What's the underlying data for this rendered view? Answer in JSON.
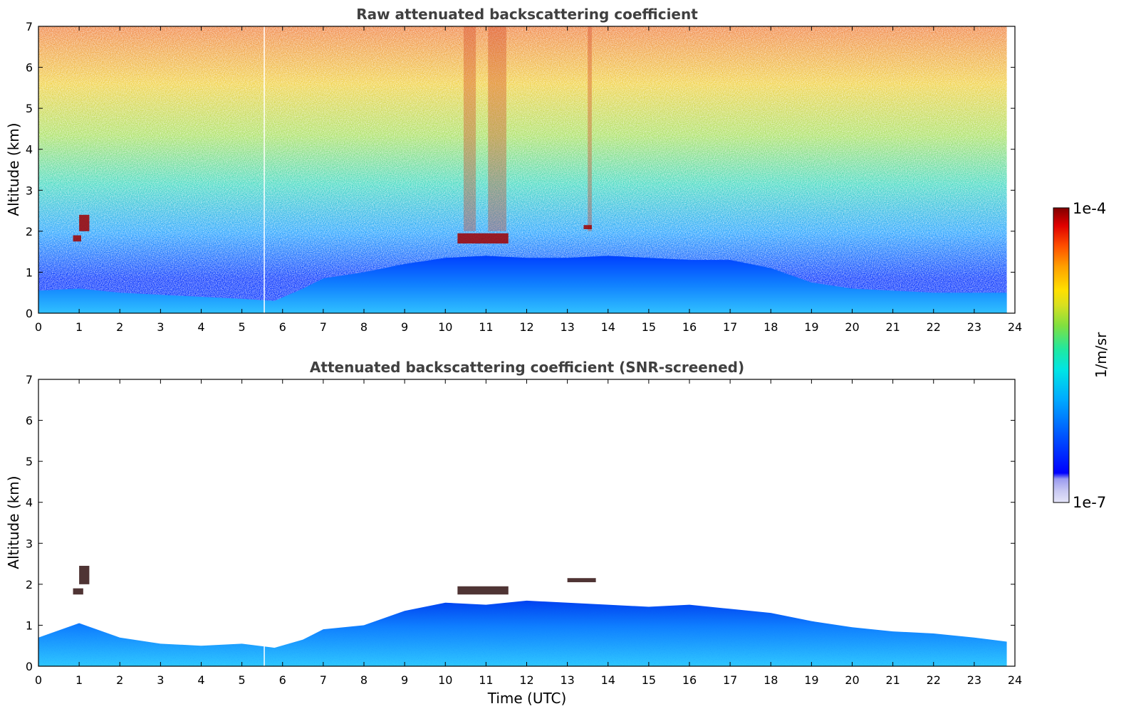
{
  "chart_data": [
    {
      "type": "heatmap",
      "title": "Raw attenuated backscattering coefficient",
      "xlabel": "",
      "ylabel": "Altitude (km)",
      "xlim": [
        0,
        24
      ],
      "ylim": [
        0,
        7
      ],
      "xticks": [
        "0",
        "1",
        "2",
        "3",
        "4",
        "5",
        "6",
        "7",
        "8",
        "9",
        "10",
        "11",
        "12",
        "13",
        "14",
        "15",
        "16",
        "17",
        "18",
        "19",
        "20",
        "21",
        "22",
        "23",
        "24"
      ],
      "yticks": [
        "0",
        "1",
        "2",
        "3",
        "4",
        "5",
        "6",
        "7"
      ],
      "data_end_hour": 23.8,
      "gap_hour": 5.55,
      "boundary_layer_top_km": [
        [
          0,
          0.55
        ],
        [
          1,
          0.6
        ],
        [
          2,
          0.5
        ],
        [
          3,
          0.45
        ],
        [
          4,
          0.4
        ],
        [
          5,
          0.35
        ],
        [
          5.8,
          0.3
        ],
        [
          6.5,
          0.6
        ],
        [
          7,
          0.85
        ],
        [
          8,
          1.0
        ],
        [
          9,
          1.2
        ],
        [
          10,
          1.35
        ],
        [
          11,
          1.4
        ],
        [
          12,
          1.35
        ],
        [
          13,
          1.35
        ],
        [
          14,
          1.4
        ],
        [
          15,
          1.35
        ],
        [
          16,
          1.3
        ],
        [
          17,
          1.3
        ],
        [
          18,
          1.1
        ],
        [
          19,
          0.75
        ],
        [
          20,
          0.6
        ],
        [
          21,
          0.55
        ],
        [
          22,
          0.5
        ],
        [
          23,
          0.5
        ],
        [
          23.8,
          0.5
        ]
      ],
      "cloud_layers": [
        {
          "x": [
            0.85,
            1.05
          ],
          "y": [
            1.75,
            1.9
          ]
        },
        {
          "x": [
            1.0,
            1.25
          ],
          "y": [
            2.0,
            2.4
          ]
        },
        {
          "x": [
            10.3,
            11.55
          ],
          "y": [
            1.7,
            1.95
          ]
        },
        {
          "x": [
            13.4,
            13.6
          ],
          "y": [
            2.05,
            2.15
          ]
        }
      ],
      "noisy_columns_hours": [
        [
          10.45,
          10.75
        ],
        [
          11.05,
          11.5
        ],
        [
          13.5,
          13.6
        ]
      ]
    },
    {
      "type": "heatmap",
      "title": "Attenuated backscattering coefficient (SNR-screened)",
      "xlabel": "Time (UTC)",
      "ylabel": "Altitude (km)",
      "xlim": [
        0,
        24
      ],
      "ylim": [
        0,
        7
      ],
      "xticks": [
        "0",
        "1",
        "2",
        "3",
        "4",
        "5",
        "6",
        "7",
        "8",
        "9",
        "10",
        "11",
        "12",
        "13",
        "14",
        "15",
        "16",
        "17",
        "18",
        "19",
        "20",
        "21",
        "22",
        "23",
        "24"
      ],
      "yticks": [
        "0",
        "1",
        "2",
        "3",
        "4",
        "5",
        "6",
        "7"
      ],
      "data_end_hour": 23.8,
      "gap_hour": 5.55,
      "boundary_layer_top_km": [
        [
          0,
          0.7
        ],
        [
          1,
          1.05
        ],
        [
          2,
          0.7
        ],
        [
          3,
          0.55
        ],
        [
          4,
          0.5
        ],
        [
          5,
          0.55
        ],
        [
          5.8,
          0.45
        ],
        [
          6.5,
          0.65
        ],
        [
          7,
          0.9
        ],
        [
          8,
          1.0
        ],
        [
          9,
          1.35
        ],
        [
          10,
          1.55
        ],
        [
          11,
          1.5
        ],
        [
          12,
          1.6
        ],
        [
          13,
          1.55
        ],
        [
          14,
          1.5
        ],
        [
          15,
          1.45
        ],
        [
          16,
          1.5
        ],
        [
          17,
          1.4
        ],
        [
          18,
          1.3
        ],
        [
          19,
          1.1
        ],
        [
          20,
          0.95
        ],
        [
          21,
          0.85
        ],
        [
          22,
          0.8
        ],
        [
          23,
          0.7
        ],
        [
          23.8,
          0.6
        ]
      ],
      "cloud_layers": [
        {
          "x": [
            0.85,
            1.1
          ],
          "y": [
            1.75,
            1.9
          ]
        },
        {
          "x": [
            1.0,
            1.25
          ],
          "y": [
            2.0,
            2.45
          ]
        },
        {
          "x": [
            10.3,
            11.55
          ],
          "y": [
            1.75,
            1.95
          ]
        },
        {
          "x": [
            13.0,
            13.7
          ],
          "y": [
            2.05,
            2.15
          ]
        }
      ],
      "noisy_columns_hours": []
    }
  ],
  "colorbar": {
    "label": "1/m/sr",
    "min_label": "1e-7",
    "max_label": "1e-4",
    "scale": "log",
    "colormap": [
      "#e4e4f8",
      "#c8c8f2",
      "#9a9af0",
      "#0000ff",
      "#0050ff",
      "#00aaff",
      "#00e5e5",
      "#20e8a0",
      "#80e040",
      "#d8e020",
      "#ffe000",
      "#ffa000",
      "#ff5000",
      "#e00000",
      "#800000"
    ]
  }
}
